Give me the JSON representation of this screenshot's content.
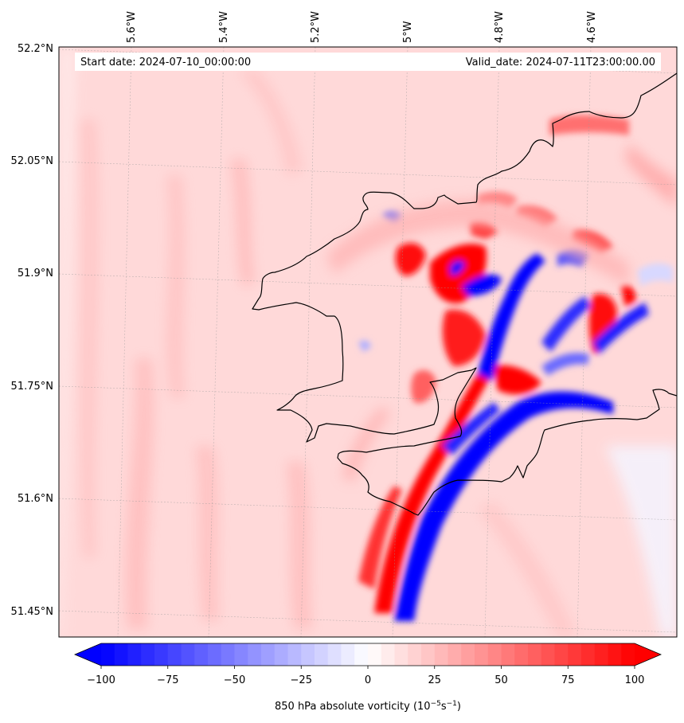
{
  "map": {
    "start_date": "Start date: 2024-07-10_00:00:00",
    "valid_date": "Valid_date: 2024-07-11T23:00:00.00",
    "lon_labels": [
      "5.6°W",
      "5.4°W",
      "5.2°W",
      "5°W",
      "4.8°W",
      "4.6°W"
    ],
    "lat_labels": [
      "52.2°N",
      "52.05°N",
      "51.9°N",
      "51.75°N",
      "51.6°N",
      "51.45°N"
    ]
  },
  "colorbar": {
    "label": "850 hPa absolute vorticity (10",
    "label_exp1": "−5",
    "label_s": "s",
    "label_exp2": "−1",
    "label_close": ")",
    "ticks": [
      "−100",
      "−75",
      "−50",
      "−25",
      "0",
      "25",
      "50",
      "75",
      "100"
    ],
    "min": -100,
    "max": 100,
    "levels": 40,
    "extend": "both",
    "colormap": "bwr",
    "low_color": "#0000ff",
    "mid_color": "#ffffff",
    "high_color": "#ff0000"
  }
}
